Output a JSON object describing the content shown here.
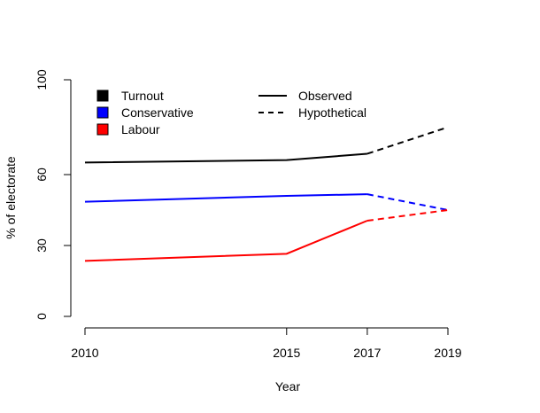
{
  "chart_data": {
    "type": "line",
    "title": "",
    "xlabel": "Year",
    "ylabel": "% of electorate",
    "x": [
      2010,
      2015,
      2017,
      2019
    ],
    "xlim": [
      2010,
      2019
    ],
    "ylim": [
      0,
      100
    ],
    "y_ticks": [
      0,
      30,
      60,
      100
    ],
    "y_tick_labels": [
      "0",
      "30",
      "60",
      "100"
    ],
    "x_tick_labels": [
      "2010",
      "2015",
      "2017",
      "2019"
    ],
    "grid": false,
    "legend_placement": "top-left",
    "series": [
      {
        "name": "Turnout",
        "color": "#000000",
        "observed": {
          "x": [
            2010,
            2015,
            2017
          ],
          "y": [
            65.1,
            66.1,
            68.8
          ]
        },
        "hypothetical": {
          "x": [
            2017,
            2019
          ],
          "y": [
            68.8,
            80.0
          ]
        }
      },
      {
        "name": "Conservative",
        "color": "#0000ff",
        "observed": {
          "x": [
            2010,
            2015,
            2017
          ],
          "y": [
            48.5,
            51.0,
            51.7
          ]
        },
        "hypothetical": {
          "x": [
            2017,
            2019
          ],
          "y": [
            51.7,
            45.0
          ]
        }
      },
      {
        "name": "Labour",
        "color": "#ff0000",
        "observed": {
          "x": [
            2010,
            2015,
            2017
          ],
          "y": [
            23.5,
            26.5,
            40.5
          ]
        },
        "hypothetical": {
          "x": [
            2017,
            2019
          ],
          "y": [
            40.5,
            45.0
          ]
        }
      }
    ],
    "line_styles": [
      {
        "label": "Observed",
        "dash": "solid"
      },
      {
        "label": "Hypothetical",
        "dash": "dashed"
      }
    ]
  }
}
